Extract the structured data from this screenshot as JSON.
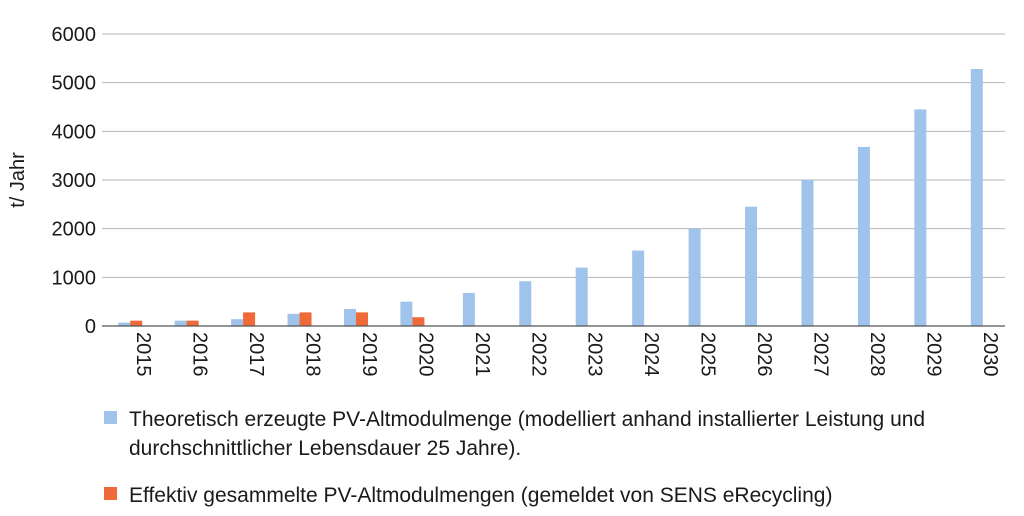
{
  "colors": {
    "theoretical": "#9fc3ea",
    "collected": "#ef6a38",
    "grid": "#b5b5b5",
    "axis": "#555555"
  },
  "chart_data": {
    "type": "bar",
    "ylabel": "t/ Jahr",
    "ylim": [
      0,
      6000
    ],
    "yticks": [
      "0",
      "1000",
      "2000",
      "3000",
      "4000",
      "5000",
      "6000"
    ],
    "grid": true,
    "legend_position": "bottom",
    "categories": [
      "2015",
      "2016",
      "2017",
      "2018",
      "2019",
      "2020",
      "2021",
      "2022",
      "2023",
      "2024",
      "2025",
      "2026",
      "2027",
      "2028",
      "2029",
      "2030"
    ],
    "series": [
      {
        "name": "Theoretisch erzeugte PV-Altmodulmenge (modelliert anhand installierter Leistung und durchschnittlicher Lebensdauer 25 Jahre).",
        "color": "#9fc3ea",
        "values": [
          70,
          110,
          140,
          250,
          350,
          500,
          680,
          920,
          1200,
          1550,
          2000,
          2450,
          3000,
          3680,
          4450,
          5280
        ]
      },
      {
        "name": "Effektiv gesammelte PV-Altmodulmengen (gemeldet von SENS eRecycling)",
        "color": "#ef6a38",
        "values": [
          110,
          110,
          280,
          280,
          280,
          180,
          null,
          null,
          null,
          null,
          null,
          null,
          null,
          null,
          null,
          null
        ]
      }
    ]
  }
}
